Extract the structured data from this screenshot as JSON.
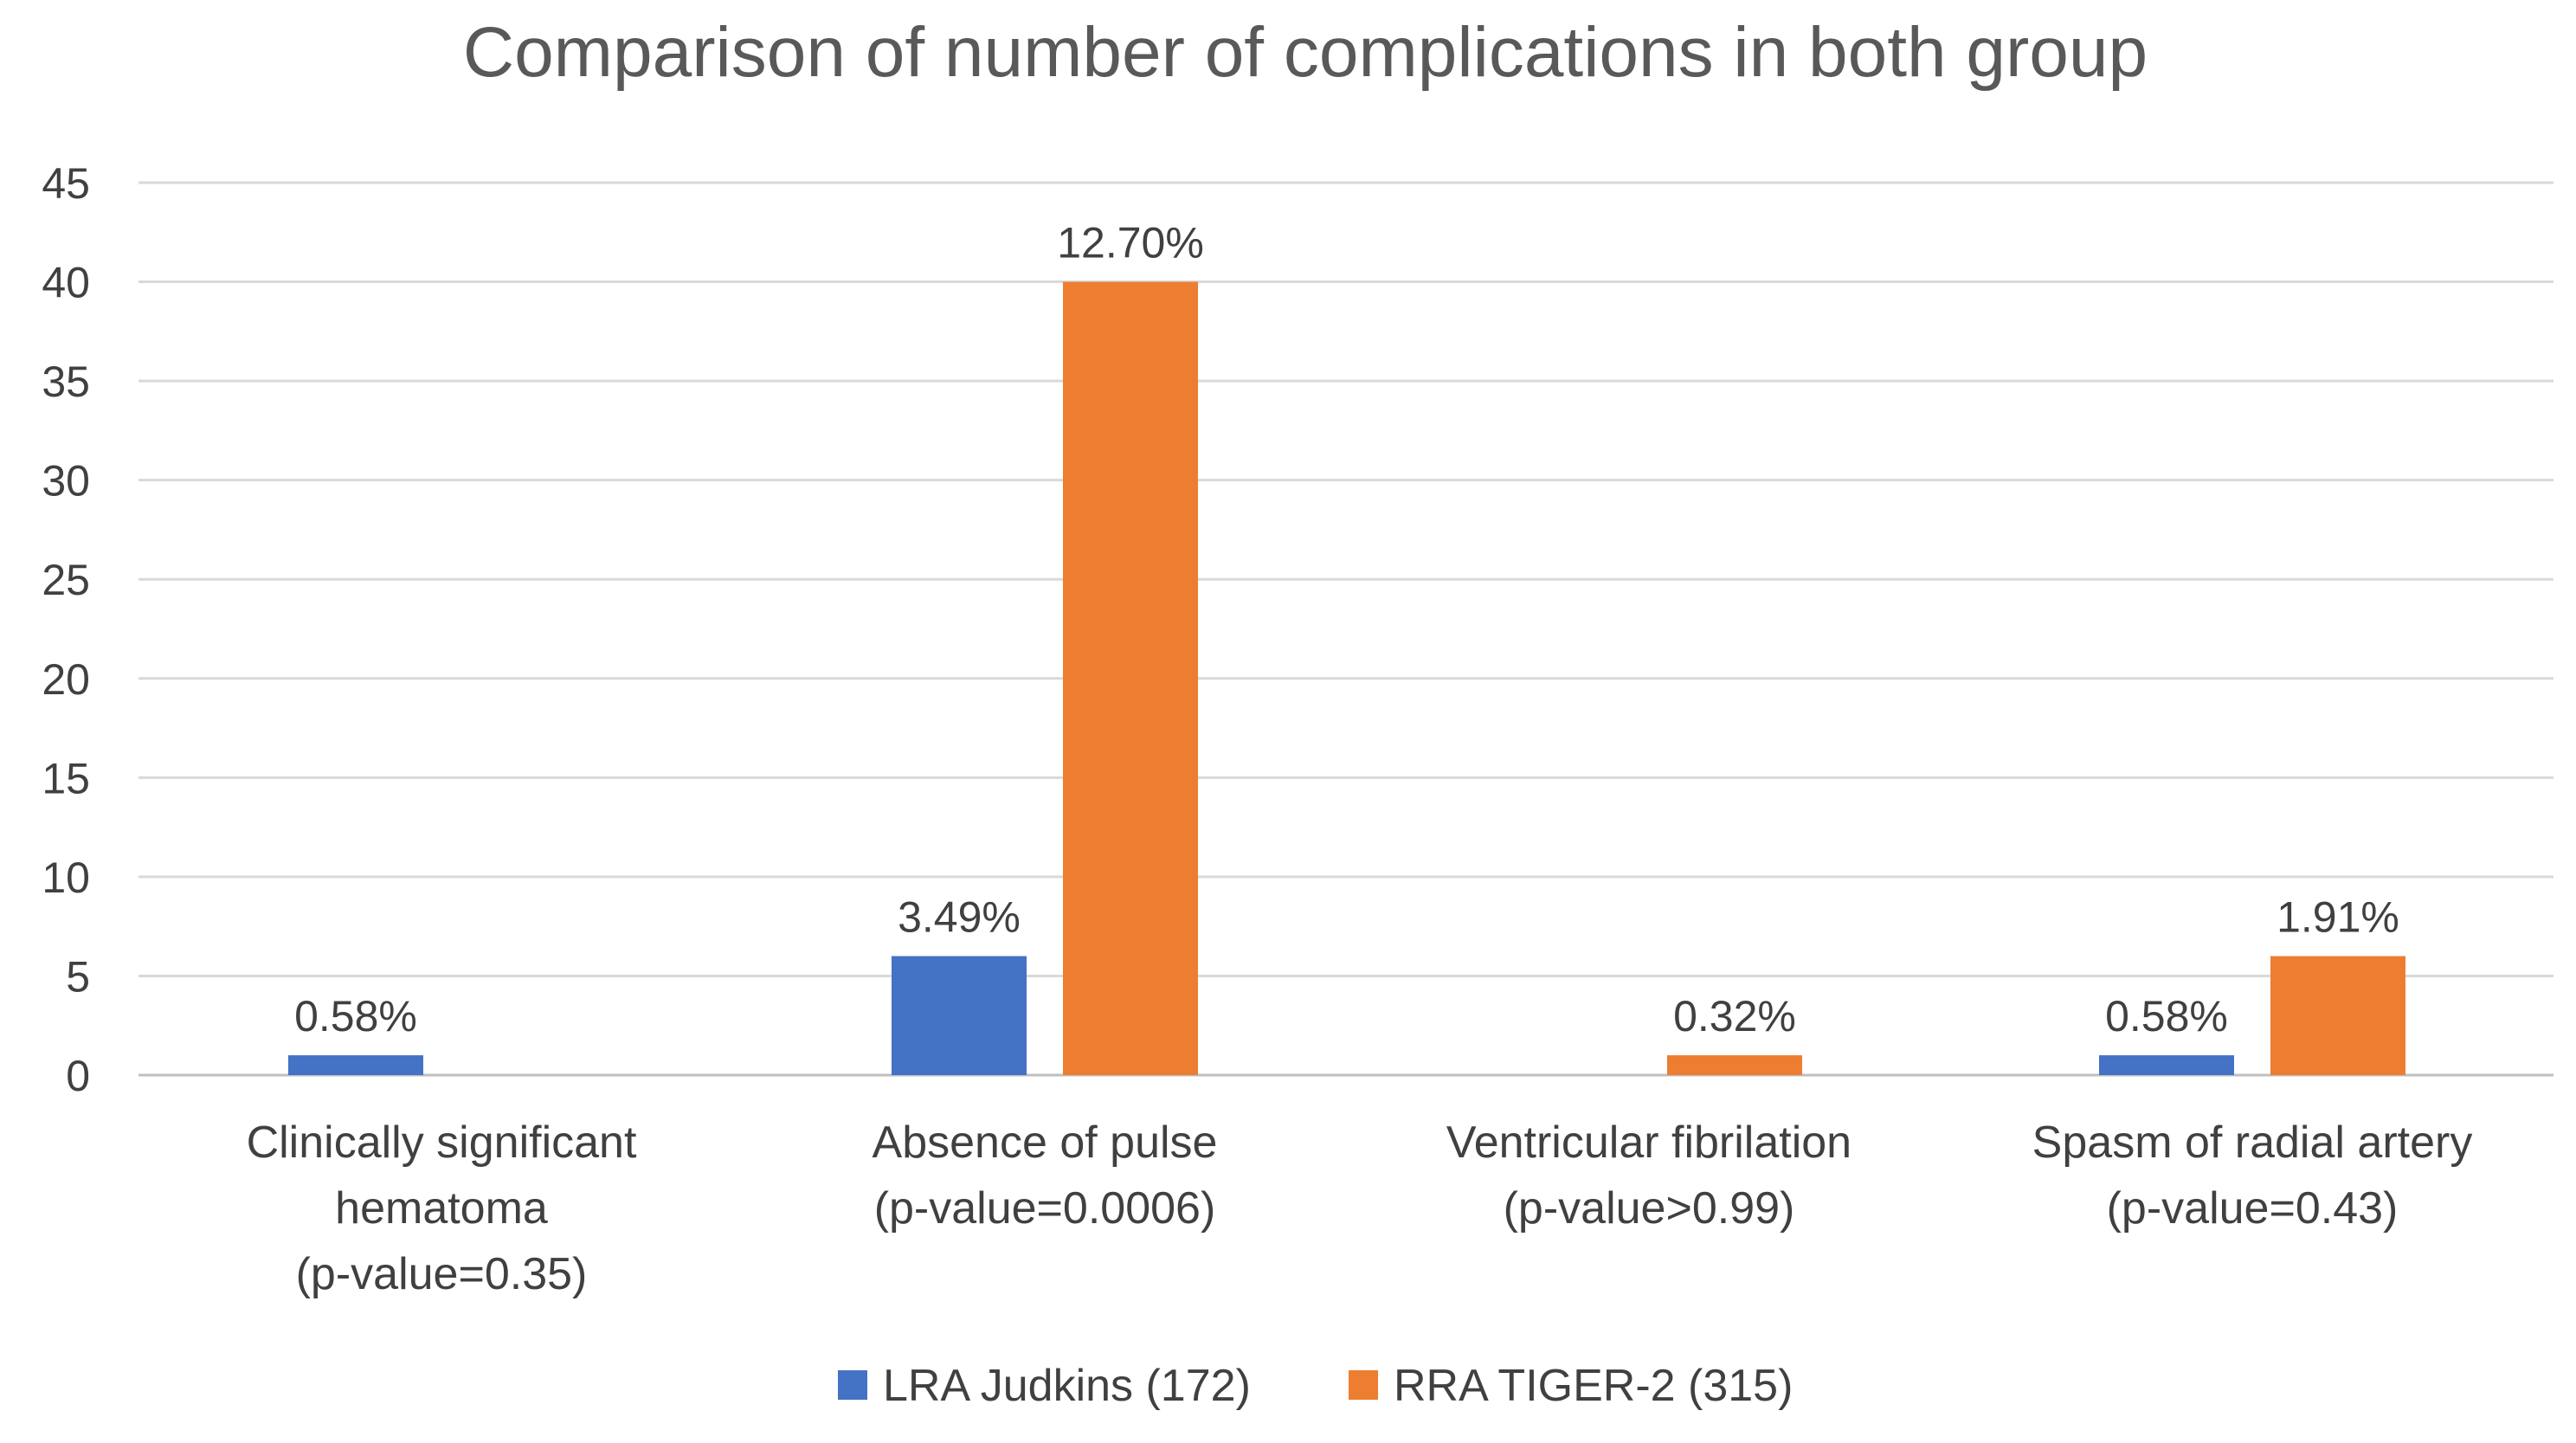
{
  "chart_data": {
    "type": "bar",
    "title": "Comparison of number of complications in both group",
    "xlabel": "",
    "ylabel": "",
    "ylim": [
      0,
      45
    ],
    "y_ticks": [
      0,
      5,
      10,
      15,
      20,
      25,
      30,
      35,
      40,
      45
    ],
    "grid": true,
    "legend_position": "bottom",
    "categories": [
      [
        "Clinically significant",
        "hematoma",
        "(p-value=0.35)"
      ],
      [
        "Absence of pulse",
        "(p-value=0.0006)"
      ],
      [
        "Ventricular fibrilation",
        "(p-value>0.99)"
      ],
      [
        "Spasm of radial artery",
        "(p-value=0.43)"
      ]
    ],
    "series": [
      {
        "name": "LRA Judkins (172)",
        "color": "#4472C4",
        "values": [
          1,
          6,
          0,
          1
        ],
        "labels": [
          "0.58%",
          "3.49%",
          "",
          "0.58%"
        ]
      },
      {
        "name": "RRA TIGER-2 (315)",
        "color": "#ED7D31",
        "values": [
          0,
          40,
          1,
          6
        ],
        "labels": [
          "",
          "12.70%",
          "0.32%",
          "1.91%"
        ]
      }
    ]
  }
}
